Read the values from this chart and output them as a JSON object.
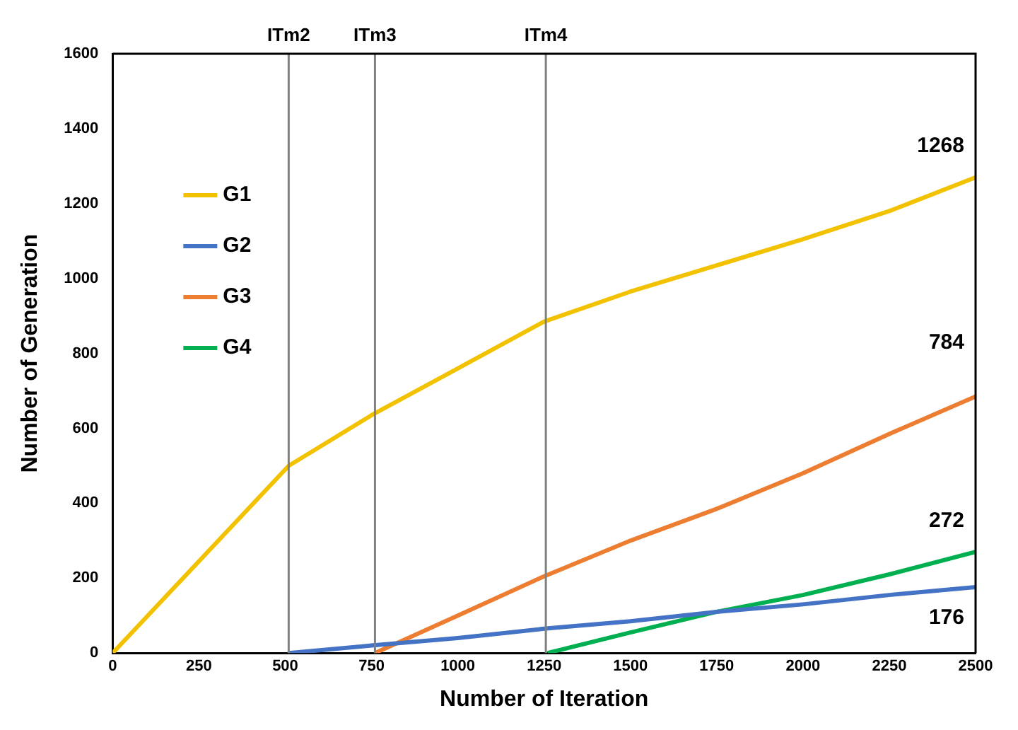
{
  "chart_data": {
    "type": "line",
    "xlabel": "Number of Iteration",
    "ylabel": "Number of Generation",
    "xlim": [
      0,
      2500
    ],
    "xticks": [
      0,
      250,
      500,
      750,
      1000,
      1250,
      1500,
      1750,
      2000,
      2250,
      2500
    ],
    "ylim": [
      0,
      1600
    ],
    "yticks": [
      0,
      200,
      400,
      600,
      800,
      1000,
      1200,
      1400,
      1600
    ],
    "grid": false,
    "legend": "top left",
    "marker": "none",
    "line_style": "solid",
    "ref_lines": [
      {
        "axis": "x",
        "value": 510,
        "label": "ITm2",
        "color": "#808080"
      },
      {
        "axis": "x",
        "value": 760,
        "label": "ITm3",
        "color": "#808080"
      },
      {
        "axis": "x",
        "value": 1255,
        "label": "ITm4",
        "color": "#808080"
      }
    ],
    "annotations": [
      "1268",
      "176",
      "784",
      "272"
    ],
    "series": [
      {
        "name": "G1",
        "color": "#f2c200",
        "x": [
          0,
          510,
          750,
          1000,
          1250,
          1500,
          1750,
          2000,
          2250,
          2500
        ],
        "values": [
          0,
          500,
          635,
          760,
          885,
          965,
          1035,
          1105,
          1180,
          1270
        ]
      },
      {
        "name": "G2",
        "color": "#4472c4",
        "x": [
          510,
          750,
          1000,
          1250,
          1500,
          1750,
          2000,
          2250,
          2500
        ],
        "values": [
          0,
          20,
          40,
          65,
          85,
          110,
          130,
          155,
          176
        ]
      },
      {
        "name": "G3",
        "color": "#ed7d31",
        "x": [
          760,
          1000,
          1250,
          1500,
          1750,
          2000,
          2250,
          2500
        ],
        "values": [
          0,
          100,
          205,
          300,
          385,
          480,
          585,
          685
        ]
      },
      {
        "name": "G4",
        "color": "#00b050",
        "x": [
          1260,
          1500,
          1750,
          2000,
          2250,
          2500
        ],
        "values": [
          0,
          55,
          110,
          155,
          210,
          270
        ]
      }
    ]
  }
}
